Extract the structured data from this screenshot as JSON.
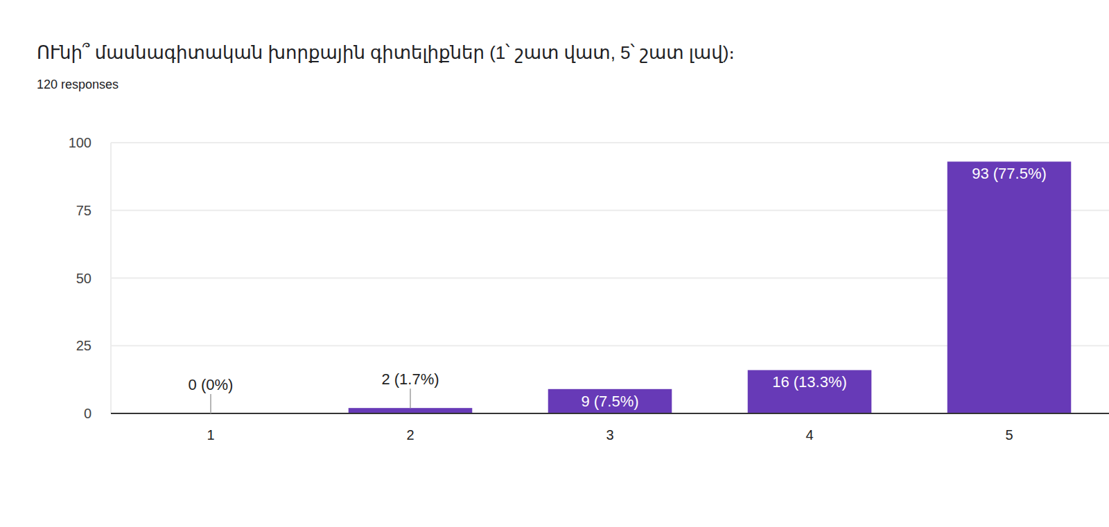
{
  "chart_data": {
    "type": "bar",
    "title": "ՈՒնի՞ մասնագիտական խորքային գիտելիքներ (1՝ շատ վատ, 5՝ շատ լավ)։",
    "subtitle": "120 responses",
    "categories": [
      "1",
      "2",
      "3",
      "4",
      "5"
    ],
    "values": [
      0,
      2,
      9,
      16,
      93
    ],
    "value_labels": [
      "0 (0%)",
      "2 (1.7%)",
      "9 (7.5%)",
      "16 (13.3%)",
      "93 (77.5%)"
    ],
    "color": "#673ab7",
    "ylim": [
      0,
      100
    ],
    "yticks": [
      0,
      25,
      50,
      75,
      100
    ],
    "grid": true,
    "data_labels": true
  }
}
